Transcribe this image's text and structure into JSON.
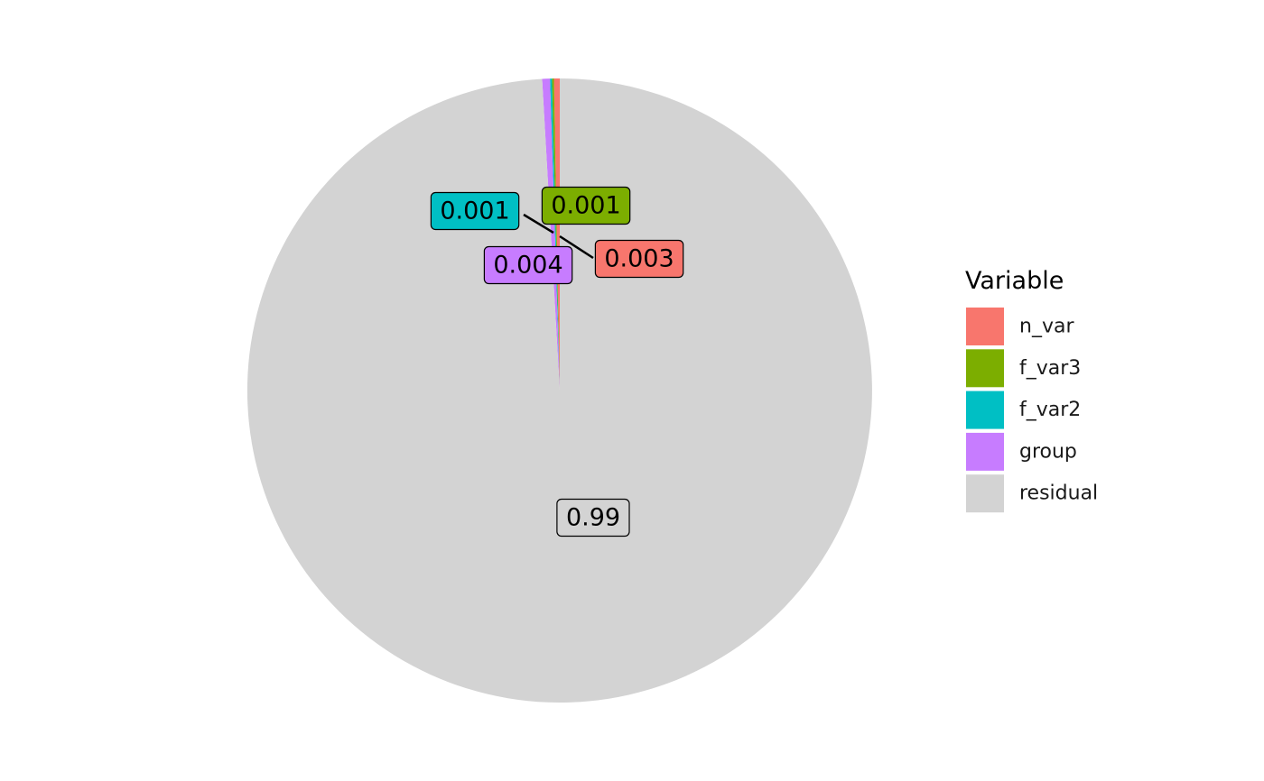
{
  "chart_data": {
    "type": "pie",
    "legend_title": "Variable",
    "legend_position": "right",
    "slices": [
      {
        "name": "n_var",
        "value": 0.003,
        "label": "0.003",
        "color": "#F8766D"
      },
      {
        "name": "f_var3",
        "value": 0.001,
        "label": "0.001",
        "color": "#7CAE00"
      },
      {
        "name": "f_var2",
        "value": 0.001,
        "label": "0.001",
        "color": "#00BFC4"
      },
      {
        "name": "group",
        "value": 0.004,
        "label": "0.004",
        "color": "#C77CFF"
      },
      {
        "name": "residual",
        "value": 0.99,
        "label": "0.99",
        "color": "#D3D3D3"
      }
    ]
  }
}
